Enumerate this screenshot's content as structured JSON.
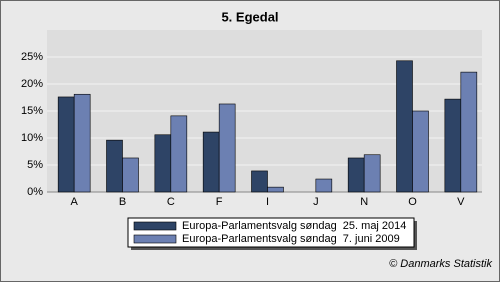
{
  "chart_data": {
    "type": "bar",
    "title": "5. Egedal",
    "categories": [
      "A",
      "B",
      "C",
      "F",
      "I",
      "J",
      "N",
      "O",
      "V"
    ],
    "series": [
      {
        "name": "Europa-Parlamentsvalg søndag  25. maj 2014",
        "color": "#2e4466",
        "values": [
          17.6,
          9.6,
          10.6,
          11.1,
          3.9,
          0,
          6.3,
          24.3,
          17.2
        ]
      },
      {
        "name": "Europa-Parlamentsvalg søndag  7. juni 2009",
        "color": "#6c80b2",
        "values": [
          18.1,
          6.3,
          14.1,
          16.3,
          0.9,
          2.4,
          6.9,
          15.0,
          22.2
        ]
      }
    ],
    "ylim": [
      0,
      30
    ],
    "yticks": [
      {
        "value": 0,
        "label": "0%"
      },
      {
        "value": 5,
        "label": "5%"
      },
      {
        "value": 10,
        "label": "10%"
      },
      {
        "value": 15,
        "label": "15%"
      },
      {
        "value": 20,
        "label": "20%"
      },
      {
        "value": 25,
        "label": "25%"
      }
    ],
    "grid": true,
    "legend": "bottom",
    "credit": "© Danmarks Statistik"
  }
}
